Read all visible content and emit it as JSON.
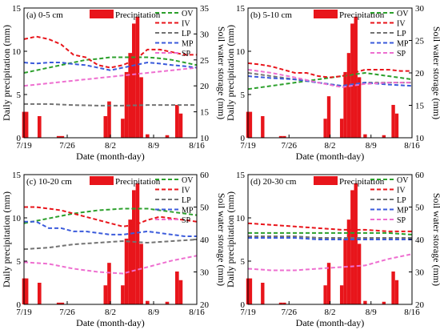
{
  "chart_data": [
    {
      "type": "bar",
      "panel_label": "(a) 0-5 cm",
      "xlabel": "Date (month-day)",
      "ylabel_left": "Daily precipitation (mm)",
      "ylabel_right": "Soil water storage (mm)",
      "xlim": [
        0,
        28
      ],
      "xticks": [
        {
          "value": 0,
          "label": "7/19"
        },
        {
          "value": 7,
          "label": "7/26"
        },
        {
          "value": 14,
          "label": "8/2"
        },
        {
          "value": 21,
          "label": "8/9"
        },
        {
          "value": 28,
          "label": "8/16"
        }
      ],
      "ylim_left": [
        0,
        15
      ],
      "yticks_left": [
        0,
        5,
        10,
        15
      ],
      "ylim_right": [
        10,
        35
      ],
      "yticks_right": [
        10,
        15,
        20,
        25,
        30,
        35
      ],
      "precipitation": {
        "name": "Precipitation",
        "color": "#e8151b",
        "x": [
          0,
          0.4,
          2.5,
          5.6,
          6.2,
          13.2,
          13.8,
          16.0,
          16.6,
          17.2,
          17.8,
          18.4,
          19.0,
          20.0,
          23.2,
          24.8,
          25.4
        ],
        "values": [
          3,
          3,
          2.5,
          0.2,
          0.2,
          2.5,
          4.2,
          2.2,
          7.6,
          9.8,
          13.2,
          14.0,
          7.0,
          0.4,
          0.3,
          3.8,
          2.8
        ]
      },
      "series": [
        {
          "name": "OV",
          "color": "#2ca02c",
          "x": [
            0,
            2,
            4,
            6,
            8,
            10,
            12,
            14,
            16,
            18,
            20,
            22,
            24,
            26,
            28
          ],
          "values": [
            22.5,
            23,
            23.5,
            24,
            24.5,
            25,
            25.2,
            25.5,
            25.5,
            25.5,
            25.5,
            25.3,
            25,
            24.5,
            24
          ]
        },
        {
          "name": "IV",
          "color": "#e8151b",
          "x": [
            0,
            2,
            4,
            6,
            8,
            10,
            12,
            14,
            16,
            18,
            20,
            22,
            24,
            26,
            28
          ],
          "values": [
            29,
            29.5,
            29,
            28,
            26,
            25.5,
            24,
            23.5,
            24,
            25,
            27,
            27,
            26.5,
            26,
            26
          ]
        },
        {
          "name": "LP",
          "color": "#737373",
          "x": [
            0,
            4,
            8,
            12,
            16,
            20,
            24,
            28
          ],
          "values": [
            16.5,
            16.5,
            16.3,
            16.2,
            16.2,
            16.3,
            16.3,
            16.3
          ]
        },
        {
          "name": "MP",
          "color": "#3b5bdb",
          "x": [
            0,
            2,
            4,
            6,
            8,
            10,
            12,
            14,
            16,
            18,
            20,
            22,
            24,
            26,
            28
          ],
          "values": [
            24.5,
            24.3,
            24.5,
            24.5,
            24.2,
            24,
            23.5,
            23,
            23.5,
            24,
            24.5,
            24.3,
            24,
            23.8,
            23.5
          ]
        },
        {
          "name": "SP",
          "color": "#ee6fd0",
          "x": [
            0,
            4,
            8,
            12,
            16,
            20,
            24,
            28
          ],
          "values": [
            20,
            20.5,
            21,
            21.5,
            22,
            22.5,
            23,
            23.5
          ]
        }
      ],
      "legend": "top"
    },
    {
      "type": "bar",
      "panel_label": "(b) 5-10 cm",
      "xlabel": "Date (month-day)",
      "ylabel_left": "Daily precipitation (mm)",
      "ylabel_right": "Soil water storage (mm)",
      "xlim": [
        0,
        28
      ],
      "xticks": [
        {
          "value": 0,
          "label": "7/19"
        },
        {
          "value": 7,
          "label": "7/26"
        },
        {
          "value": 14,
          "label": "8/2"
        },
        {
          "value": 21,
          "label": "8/9"
        },
        {
          "value": 28,
          "label": "8/16"
        }
      ],
      "ylim_left": [
        0,
        15
      ],
      "yticks_left": [
        0,
        5,
        10,
        15
      ],
      "ylim_right": [
        10,
        30
      ],
      "yticks_right": [
        10,
        15,
        20,
        25,
        30
      ],
      "precipitation": {
        "name": "Precipitation",
        "color": "#e8151b",
        "x": [
          0,
          0.4,
          2.5,
          5.6,
          6.2,
          13.2,
          13.8,
          16.0,
          16.6,
          17.2,
          17.8,
          18.4,
          19.0,
          20.0,
          23.2,
          24.8,
          25.4
        ],
        "values": [
          3,
          3,
          2.5,
          0.2,
          0.2,
          2.2,
          4.8,
          2.2,
          7.6,
          9.8,
          13.2,
          14.0,
          7.0,
          0.4,
          0.3,
          3.8,
          2.8
        ]
      },
      "series": [
        {
          "name": "OV",
          "color": "#2ca02c",
          "x": [
            0,
            4,
            8,
            12,
            16,
            20,
            24,
            28
          ],
          "values": [
            17.5,
            18,
            18.5,
            19,
            19.5,
            20,
            19.5,
            19
          ]
        },
        {
          "name": "IV",
          "color": "#e8151b",
          "x": [
            0,
            2,
            4,
            6,
            8,
            10,
            12,
            14,
            16,
            18,
            20,
            22,
            24,
            26,
            28
          ],
          "values": [
            21.5,
            21.3,
            21,
            20.5,
            20,
            20,
            19.5,
            19.3,
            19.5,
            20,
            20.5,
            20.5,
            20.5,
            20.3,
            20.3
          ]
        },
        {
          "name": "LP",
          "color": "#737373",
          "x": [
            0,
            4,
            8,
            12,
            16,
            20,
            24,
            28
          ],
          "values": [
            20,
            19.5,
            19,
            18.5,
            18,
            18.5,
            18.5,
            18.5
          ]
        },
        {
          "name": "MP",
          "color": "#3b5bdb",
          "x": [
            0,
            4,
            8,
            12,
            16,
            20,
            24,
            28
          ],
          "values": [
            19.5,
            19.2,
            19,
            18.5,
            18,
            18.5,
            18.2,
            18
          ]
        },
        {
          "name": "SP",
          "color": "#ee6fd0",
          "x": [
            0,
            4,
            8,
            12,
            16,
            20,
            24,
            28
          ],
          "values": [
            20.5,
            20,
            19.3,
            18.5,
            17.8,
            18.3,
            18.5,
            18.5
          ]
        }
      ],
      "legend": "top"
    },
    {
      "type": "bar",
      "panel_label": "(c) 10-20 cm",
      "xlabel": "Date (month-day)",
      "ylabel_left": "Daily precipitation (mm)",
      "ylabel_right": "Soil water storage (mm)",
      "xlim": [
        0,
        28
      ],
      "xticks": [
        {
          "value": 0,
          "label": "7/19"
        },
        {
          "value": 7,
          "label": "7/26"
        },
        {
          "value": 14,
          "label": "8/2"
        },
        {
          "value": 21,
          "label": "8/9"
        },
        {
          "value": 28,
          "label": "8/16"
        }
      ],
      "ylim_left": [
        0,
        15
      ],
      "yticks_left": [
        0,
        5,
        10,
        15
      ],
      "ylim_right": [
        20,
        60
      ],
      "yticks_right": [
        20,
        30,
        40,
        50,
        60
      ],
      "precipitation": {
        "name": "Precipitation",
        "color": "#e8151b",
        "x": [
          0,
          0.4,
          2.5,
          5.6,
          6.2,
          13.2,
          13.8,
          16.0,
          16.6,
          17.2,
          17.8,
          18.4,
          19.0,
          20.0,
          23.2,
          24.8,
          25.4
        ],
        "values": [
          3,
          3,
          2.5,
          0.2,
          0.2,
          2.2,
          4.8,
          2.2,
          7.6,
          9.8,
          13.2,
          14.0,
          7.0,
          0.4,
          0.3,
          3.8,
          2.8
        ]
      },
      "series": [
        {
          "name": "OV",
          "color": "#2ca02c",
          "x": [
            0,
            4,
            8,
            12,
            16,
            20,
            24,
            28
          ],
          "values": [
            45,
            46.5,
            48,
            49,
            49.5,
            49.5,
            48.5,
            47.5
          ]
        },
        {
          "name": "IV",
          "color": "#e8151b",
          "x": [
            0,
            2,
            4,
            6,
            8,
            10,
            12,
            14,
            16,
            18,
            20,
            22,
            24,
            26,
            28
          ],
          "values": [
            50,
            50,
            49.5,
            49,
            48,
            47,
            46,
            45,
            44,
            44.5,
            46,
            47,
            46.5,
            46,
            45.5
          ]
        },
        {
          "name": "LP",
          "color": "#737373",
          "x": [
            0,
            4,
            8,
            12,
            16,
            20,
            24,
            28
          ],
          "values": [
            37,
            37.5,
            38.5,
            39,
            39.5,
            39,
            39.5,
            40
          ]
        },
        {
          "name": "MP",
          "color": "#3b5bdb",
          "x": [
            0,
            2,
            4,
            6,
            8,
            10,
            12,
            14,
            16,
            18,
            20,
            22,
            24,
            26,
            28
          ],
          "values": [
            45.5,
            45.5,
            43.5,
            43.5,
            42.5,
            42.5,
            42,
            41.5,
            41.5,
            42,
            42.5,
            42,
            41.5,
            41,
            41
          ]
        },
        {
          "name": "SP",
          "color": "#ee6fd0",
          "x": [
            0,
            4,
            8,
            12,
            16,
            20,
            24,
            28
          ],
          "values": [
            33,
            32.5,
            31,
            30,
            29.5,
            31.5,
            33.5,
            35
          ]
        }
      ],
      "legend": "top"
    },
    {
      "type": "bar",
      "panel_label": "(d) 20-30 cm",
      "xlabel": "Date (month-day)",
      "ylabel_left": "Daily precipitation (mm)",
      "ylabel_right": "Soil water storage (mm)",
      "xlim": [
        0,
        28
      ],
      "xticks": [
        {
          "value": 0,
          "label": "7/19"
        },
        {
          "value": 7,
          "label": "7/26"
        },
        {
          "value": 14,
          "label": "8/2"
        },
        {
          "value": 21,
          "label": "8/9"
        },
        {
          "value": 28,
          "label": "8/16"
        }
      ],
      "ylim_left": [
        0,
        15
      ],
      "yticks_left": [
        0,
        5,
        10,
        15
      ],
      "ylim_right": [
        20,
        60
      ],
      "yticks_right": [
        20,
        30,
        40,
        50,
        60
      ],
      "precipitation": {
        "name": "Precipitation",
        "color": "#e8151b",
        "x": [
          0,
          0.4,
          2.5,
          5.6,
          6.2,
          13.2,
          13.8,
          16.0,
          16.6,
          17.2,
          17.8,
          18.4,
          19.0,
          20.0,
          23.2,
          24.8,
          25.4
        ],
        "values": [
          3,
          3,
          2.5,
          0.2,
          0.2,
          2.2,
          4.8,
          2.2,
          7.6,
          9.8,
          13.2,
          14.0,
          7.0,
          0.4,
          0.3,
          3.8,
          2.8
        ]
      },
      "series": [
        {
          "name": "OV",
          "color": "#2ca02c",
          "x": [
            0,
            4,
            8,
            12,
            16,
            20,
            24,
            28
          ],
          "values": [
            42,
            42,
            42,
            42,
            42,
            42,
            42,
            41.5
          ]
        },
        {
          "name": "IV",
          "color": "#e8151b",
          "x": [
            0,
            4,
            8,
            12,
            16,
            20,
            24,
            28
          ],
          "values": [
            45,
            44.5,
            44,
            43.5,
            43,
            43,
            42.5,
            42.5
          ]
        },
        {
          "name": "LP",
          "color": "#737373",
          "x": [
            0,
            4,
            8,
            12,
            16,
            20,
            24,
            28
          ],
          "values": [
            41,
            41,
            41,
            40.5,
            40.5,
            40.5,
            40.5,
            40.5
          ]
        },
        {
          "name": "MP",
          "color": "#3b5bdb",
          "x": [
            0,
            4,
            8,
            12,
            16,
            20,
            24,
            28
          ],
          "values": [
            40.5,
            40.5,
            40.5,
            40,
            40,
            40,
            40,
            40
          ]
        },
        {
          "name": "SP",
          "color": "#ee6fd0",
          "x": [
            0,
            4,
            8,
            12,
            16,
            20,
            24,
            28
          ],
          "values": [
            31,
            30.5,
            30.5,
            31,
            31.5,
            32,
            34,
            35.5
          ]
        }
      ],
      "legend": "top"
    }
  ]
}
